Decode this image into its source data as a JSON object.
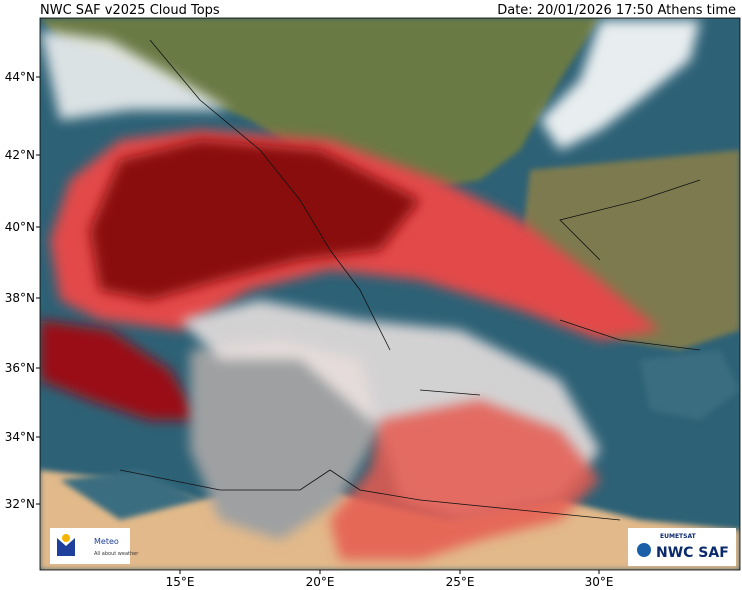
{
  "header": {
    "title": "NWC SAF v2025 Cloud Tops",
    "date": "Date: 20/01/2026 17:50 Athens time"
  },
  "map": {
    "lat_labels": [
      "44°N",
      "42°N",
      "40°N",
      "38°N",
      "36°N",
      "34°N",
      "32°N"
    ],
    "lon_labels": [
      "15°E",
      "20°E",
      "25°E",
      "30°E"
    ]
  },
  "logos": {
    "meteo": {
      "name": "Meteo",
      "tagline": "All about weather"
    },
    "nwcsaf": {
      "org": "EUMETSAT",
      "name": "NWC SAF"
    }
  }
}
